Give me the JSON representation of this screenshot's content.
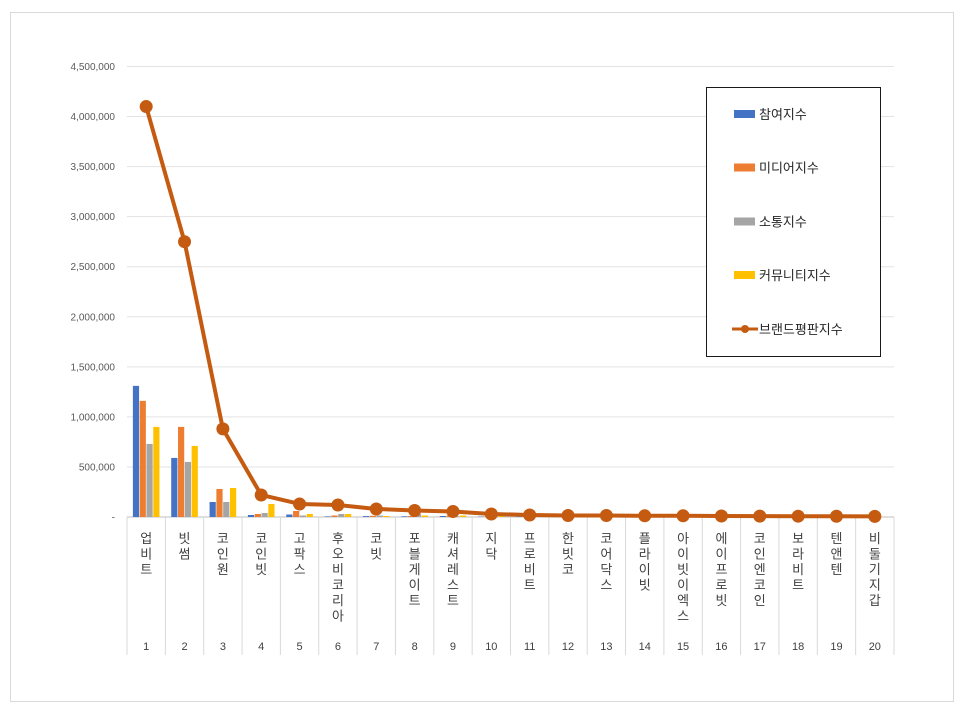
{
  "chart_data": {
    "type": "bar",
    "title": "",
    "xlabel": "",
    "ylabel": "",
    "ylim": [
      0,
      4500000
    ],
    "yticks": [
      "-",
      "500,000",
      "1,000,000",
      "1,500,000",
      "2,000,000",
      "2,500,000",
      "3,000,000",
      "3,500,000",
      "4,000,000",
      "4,500,000"
    ],
    "grid": true,
    "legend_position": "right",
    "categories": [
      "업비트",
      "빗썸",
      "코인원",
      "코인빗",
      "고팍스",
      "후오비코리아",
      "코빗",
      "포블게이트",
      "캐셔레스트",
      "지닥",
      "프로비트",
      "한빗코",
      "코어닥스",
      "플라이빗",
      "아이빗이엑스",
      "에이프로빗",
      "코인엔코인",
      "보라비트",
      "텐앤텐",
      "비둘기지갑"
    ],
    "ranks": [
      "1",
      "2",
      "3",
      "4",
      "5",
      "6",
      "7",
      "8",
      "9",
      "10",
      "11",
      "12",
      "13",
      "14",
      "15",
      "16",
      "17",
      "18",
      "19",
      "20"
    ],
    "series": [
      {
        "name": "참여지수",
        "type": "bar",
        "color": "#4472c4",
        "values": [
          1310000,
          590000,
          150000,
          20000,
          25000,
          6000,
          9000,
          7000,
          10000,
          4000,
          3000,
          3000,
          2500,
          2500,
          2000,
          2000,
          1500,
          1500,
          1500,
          1000
        ]
      },
      {
        "name": "미디어지수",
        "type": "bar",
        "color": "#ed7d31",
        "values": [
          1160000,
          900000,
          280000,
          30000,
          60000,
          15000,
          12000,
          10000,
          15000,
          8000,
          6000,
          5000,
          5000,
          4000,
          4000,
          3500,
          3000,
          3000,
          2500,
          2000
        ]
      },
      {
        "name": "소통지수",
        "type": "bar",
        "color": "#a5a5a5",
        "values": [
          730000,
          550000,
          150000,
          40000,
          15000,
          30000,
          15000,
          30000,
          8000,
          5000,
          4000,
          3000,
          3000,
          2500,
          2500,
          2000,
          2000,
          1500,
          1500,
          1500
        ]
      },
      {
        "name": "커뮤니티지수",
        "type": "bar",
        "color": "#ffc000",
        "values": [
          900000,
          710000,
          290000,
          130000,
          30000,
          30000,
          10000,
          15000,
          15000,
          8000,
          6000,
          4000,
          4000,
          3000,
          3000,
          2500,
          2500,
          2000,
          2000,
          1500
        ]
      },
      {
        "name": "브랜드평판지수",
        "type": "line",
        "color": "#c55a11",
        "values": [
          4100000,
          2750000,
          880000,
          220000,
          130000,
          120000,
          80000,
          65000,
          55000,
          30000,
          20000,
          15000,
          15000,
          12000,
          12000,
          10000,
          9000,
          8000,
          7500,
          6000
        ]
      }
    ]
  }
}
